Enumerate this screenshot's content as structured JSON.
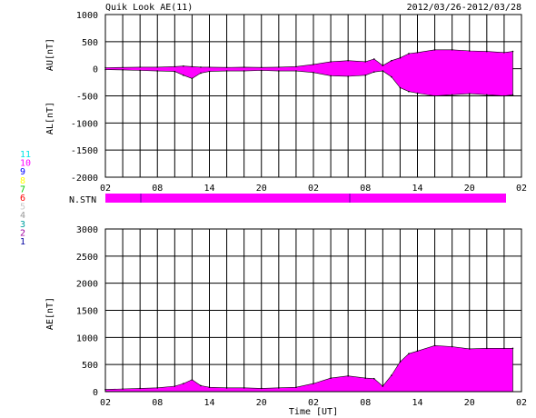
{
  "header": {
    "title": "Quik Look AE(11)",
    "date_range": "2012/03/26-2012/03/28"
  },
  "station_count": {
    "label": "N.STN",
    "legend": [
      {
        "label": "11",
        "color": "#00e5e5"
      },
      {
        "label": "10",
        "color": "#ff00ff"
      },
      {
        "label": "9",
        "color": "#0000ff"
      },
      {
        "label": "8",
        "color": "#ffff00"
      },
      {
        "label": "7",
        "color": "#00cc00"
      },
      {
        "label": "6",
        "color": "#ff0000"
      },
      {
        "label": "5",
        "color": "#c8c8c8"
      },
      {
        "label": "4",
        "color": "#999999"
      },
      {
        "label": "3",
        "color": "#00a0a0"
      },
      {
        "label": "2",
        "color": "#a000a0"
      },
      {
        "label": "1",
        "color": "#0000a0"
      }
    ]
  },
  "x_ticks": [
    "02",
    "08",
    "14",
    "20",
    "02",
    "08",
    "14",
    "20",
    "02"
  ],
  "xlabel": "Time [UT]",
  "chart_data": [
    {
      "type": "area",
      "name": "AU/AL",
      "ylabel_top": "AU[nT]",
      "ylabel_bottom": "AL[nT]",
      "ylim": [
        -2000,
        1000
      ],
      "y_ticks": [
        1000,
        500,
        0,
        -500,
        -1000,
        -1500,
        -2000
      ],
      "xlim_hours": [
        0,
        48
      ],
      "grid": true,
      "color": "#ff00ff",
      "x": [
        0,
        2,
        4,
        6,
        8,
        9,
        10,
        11,
        12,
        14,
        16,
        18,
        20,
        22,
        24,
        26,
        28,
        30,
        31,
        32,
        33,
        34,
        35,
        36,
        38,
        40,
        42,
        44,
        46,
        47
      ],
      "au": [
        20,
        25,
        30,
        30,
        40,
        50,
        40,
        30,
        30,
        25,
        30,
        25,
        30,
        40,
        80,
        130,
        150,
        130,
        180,
        60,
        150,
        200,
        280,
        300,
        350,
        350,
        330,
        320,
        300,
        320
      ],
      "al": [
        -15,
        -20,
        -30,
        -40,
        -50,
        -120,
        -180,
        -80,
        -50,
        -40,
        -40,
        -30,
        -40,
        -40,
        -70,
        -130,
        -140,
        -120,
        -60,
        -40,
        -150,
        -350,
        -420,
        -450,
        -500,
        -480,
        -460,
        -480,
        -500,
        -480
      ]
    },
    {
      "type": "area",
      "name": "AE",
      "ylabel": "AE[nT]",
      "ylim": [
        0,
        3000
      ],
      "y_ticks": [
        3000,
        2500,
        2000,
        1500,
        1000,
        500,
        0
      ],
      "xlim_hours": [
        0,
        48
      ],
      "grid": true,
      "color": "#ff00ff",
      "x": [
        0,
        2,
        4,
        6,
        8,
        9,
        10,
        11,
        12,
        14,
        16,
        18,
        20,
        22,
        24,
        26,
        28,
        30,
        31,
        32,
        33,
        34,
        35,
        36,
        38,
        40,
        42,
        44,
        46,
        47
      ],
      "values": [
        40,
        50,
        60,
        70,
        100,
        150,
        220,
        110,
        80,
        70,
        70,
        60,
        70,
        80,
        150,
        250,
        290,
        250,
        240,
        100,
        300,
        550,
        700,
        750,
        850,
        830,
        790,
        800,
        800,
        800
      ]
    }
  ]
}
